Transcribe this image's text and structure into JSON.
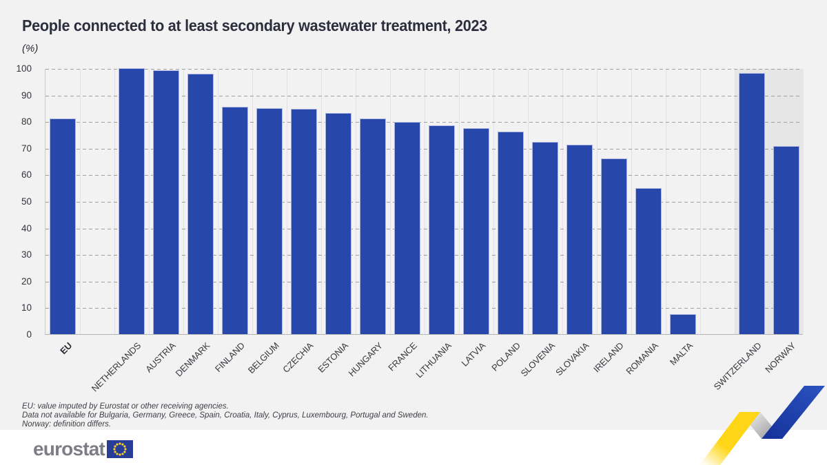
{
  "chart_data": {
    "type": "bar",
    "title": "People connected to at least secondary wastewater treatment, 2023",
    "unit_label": "(%)",
    "ylim": [
      0,
      100
    ],
    "ytick_step": 10,
    "grid": "horizontal-dashed",
    "legend": "none",
    "bars": [
      {
        "label": "EU",
        "value": 81,
        "emphasis": true
      },
      {
        "label": "",
        "value": null,
        "spacer": true
      },
      {
        "label": "NETHERLANDS",
        "value": 100
      },
      {
        "label": "AUSTRIA",
        "value": 99.3
      },
      {
        "label": "DENMARK",
        "value": 98
      },
      {
        "label": "FINLAND",
        "value": 85.4
      },
      {
        "label": "BELGIUM",
        "value": 84.9
      },
      {
        "label": "CZECHIA",
        "value": 84.7
      },
      {
        "label": "ESTONIA",
        "value": 83.2
      },
      {
        "label": "HUNGARY",
        "value": 81
      },
      {
        "label": "FRANCE",
        "value": 79.9
      },
      {
        "label": "LITHUANIA",
        "value": 78.5
      },
      {
        "label": "LATVIA",
        "value": 77.5
      },
      {
        "label": "POLAND",
        "value": 76.1
      },
      {
        "label": "SLOVENIA",
        "value": 72.4
      },
      {
        "label": "SLOVAKIA",
        "value": 71.3
      },
      {
        "label": "IRELAND",
        "value": 66
      },
      {
        "label": "ROMANIA",
        "value": 55
      },
      {
        "label": "MALTA",
        "value": 7.5
      },
      {
        "label": "",
        "value": null,
        "spacer": true
      },
      {
        "label": "SWITZERLAND",
        "value": 98.2,
        "shaded": true
      },
      {
        "label": "NORWAY",
        "value": 70.6,
        "shaded": true
      }
    ]
  },
  "footnotes": [
    "EU: value imputed by Eurostat or other receiving agencies.",
    "Data not available for Bulgaria, Germany, Greece, Spain, Croatia, Italy, Cyprus, Luxembourg, Portugal and Sweden.",
    "Norway: definition differs."
  ],
  "footer": {
    "logo_text": "eurostat"
  },
  "colors": {
    "bar": "#2847ab",
    "bar_border": "#aeb8de",
    "card_bg": "#f2f2f2",
    "shaded_column_bg": "#e6e6e6",
    "grid_dash": "#9e9e9e",
    "grid_vertical": "#e1e1e5",
    "title_ink": "#2c2e3d",
    "ribbon_yellow": "#ffd617",
    "ribbon_blue": "#2148b1",
    "ribbon_gray": "#b9b9b9",
    "flag_blue": "#283d96",
    "flag_stars": "#f8d12c",
    "logo_gray": "#7d7d87"
  }
}
